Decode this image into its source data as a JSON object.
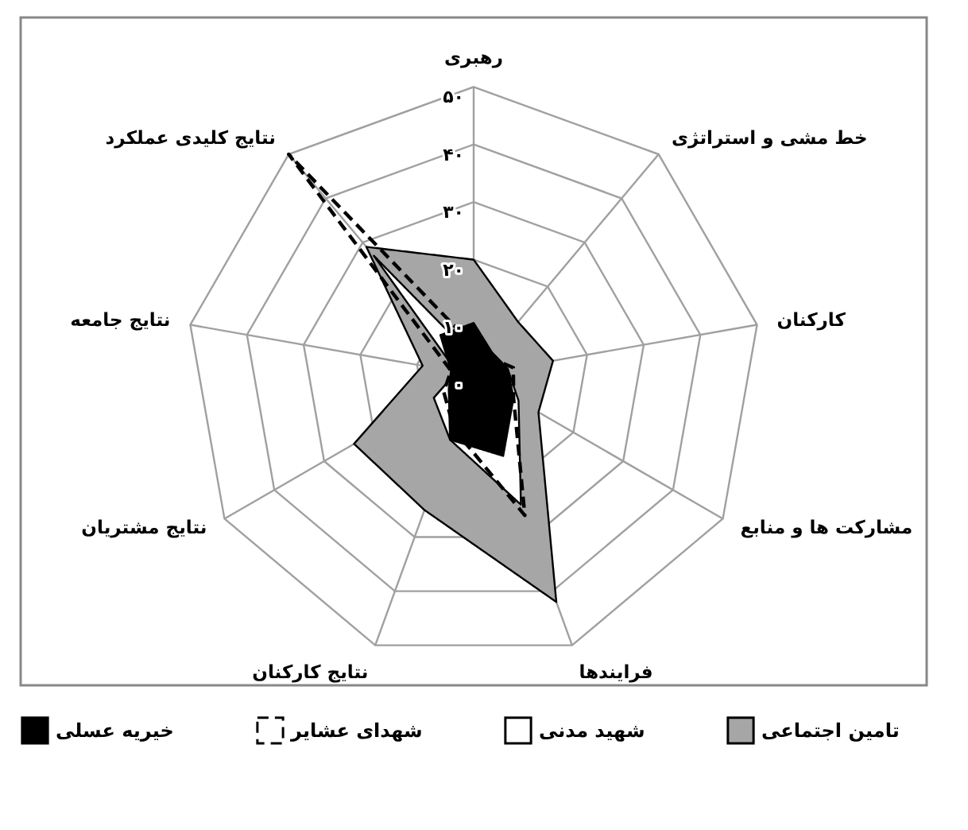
{
  "chart_data": {
    "type": "radar",
    "categories": [
      "رهبری",
      "خط مشی و استراتژی",
      "کارکنان",
      "مشارکت ها و منابع",
      "فرایندها",
      "نتایج کارکنان",
      "نتایج مشتریان",
      "نتایج جامعه",
      "نتایج کلیدی عملکرد"
    ],
    "ylim": [
      0,
      50
    ],
    "yticks": [
      {
        "value": 0,
        "label": "۰"
      },
      {
        "value": 10,
        "label": "۱۰"
      },
      {
        "value": 20,
        "label": "۲۰"
      },
      {
        "value": 30,
        "label": "۳۰"
      },
      {
        "value": 40,
        "label": "۴۰"
      },
      {
        "value": 50,
        "label": "۵۰"
      }
    ],
    "grid": true,
    "legend": "bottom",
    "series": [
      {
        "name": "تامین اجتماعی",
        "color": "#a6a6a6",
        "values": [
          20,
          12,
          14,
          13,
          42,
          25,
          24,
          9,
          29
        ]
      },
      {
        "name": "شهید مدنی",
        "color": "#ffffff",
        "values": [
          3,
          5,
          6,
          9,
          24,
          12,
          8,
          3,
          27
        ]
      },
      {
        "name": "شهدای عشایر",
        "color": "#000000",
        "line_style": "dashed",
        "values": [
          5,
          4,
          7,
          8,
          26,
          10,
          6,
          4,
          50
        ]
      },
      {
        "name": "خیریه عسلی",
        "color": "#000000",
        "values": [
          9,
          5,
          6,
          8,
          15,
          12,
          5,
          4,
          9
        ]
      }
    ]
  }
}
